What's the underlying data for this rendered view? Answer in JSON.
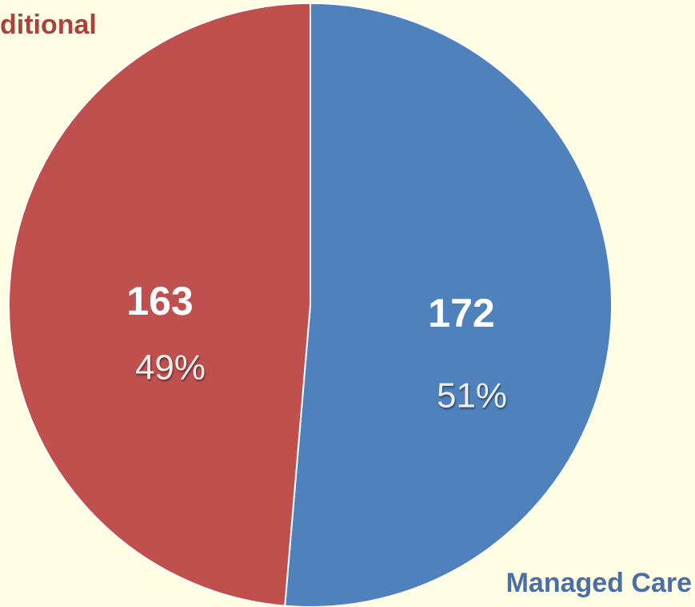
{
  "chart_data": {
    "type": "pie",
    "categories": [
      "Managed Care",
      "ditional"
    ],
    "values": [
      172,
      163
    ],
    "percent_labels": [
      "51%",
      "49%"
    ],
    "colors": [
      "#4f81bd",
      "#c0504d"
    ],
    "label_colors": [
      "#4a6ea6",
      "#a8423e"
    ]
  }
}
